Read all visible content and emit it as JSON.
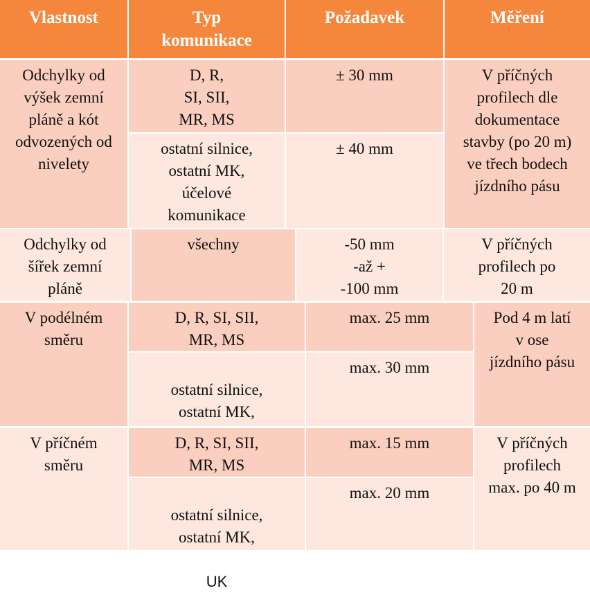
{
  "colors": {
    "header": "#f5873c",
    "cell_dark": "#fbcfbf",
    "cell_light": "#fde7df",
    "border": "#ffffff"
  },
  "header": {
    "col1": "Vlastnost",
    "col2": "Typ\nkomunikace",
    "col3": "Požadavek",
    "col4": "Měření"
  },
  "row1": {
    "property": "Odchylky od\nvýšek zemní\npláně a kót\nodvozených od\nnivelety",
    "type_a": "D, R,\nSI, SII,\nMR, MS",
    "req_a": "± 30 mm",
    "type_b": "ostatní silnice,\nostatní MK,\núčelové\nkomunikace",
    "req_b": "± 40 mm",
    "measurement": "V příčných\nprofilech  dle\ndokumentace\nstavby (po 20 m)\nve třech bodech\njízdního pásu"
  },
  "row2": {
    "property": "Odchylky od\nšířek zemní\npláně",
    "type": "všechny",
    "req": "-50 mm\n-až +\n-100 mm",
    "measurement": "V příčných\nprofilech po\n20 m"
  },
  "row3": {
    "property": "V podélném\nsměru",
    "type_a": "D, R, SI, SII,\nMR, MS",
    "req_a": "max. 25 mm",
    "type_b_text": "ostatní silnice,\nostatní MK,",
    "type_b_uk": "UK",
    "req_b": "max. 30 mm",
    "measurement": "Pod 4 m latí\nv ose\njízdního pásu"
  },
  "row4": {
    "property": "V příčném\nsměru",
    "type_a": "D, R, SI, SII,\nMR, MS",
    "req_a": "max. 15 mm",
    "type_b_text": "ostatní silnice,\nostatní MK,",
    "type_b_uk": "UK",
    "req_b": "max. 20 mm",
    "measurement": "V příčných\nprofilech\nmax. po 40 m"
  }
}
